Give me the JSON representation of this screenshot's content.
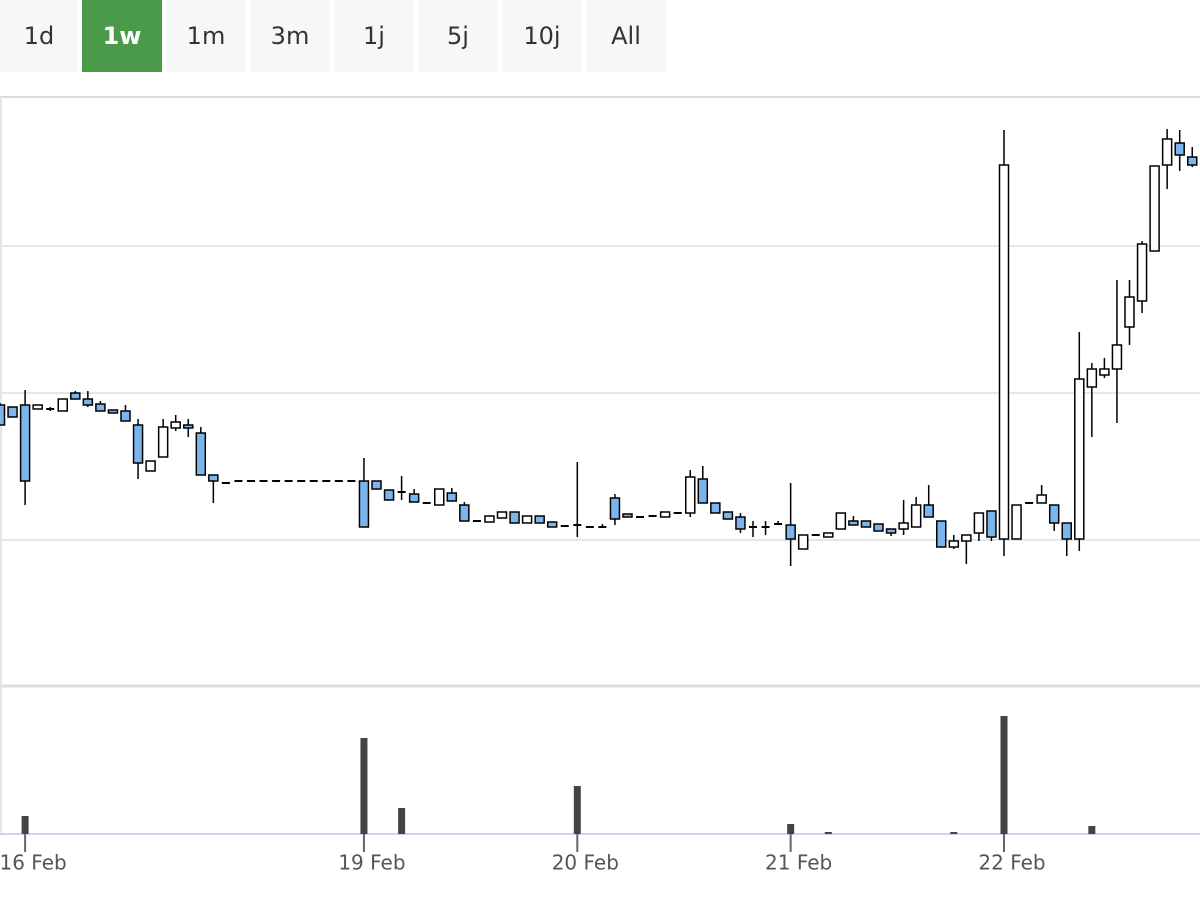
{
  "range_selector": {
    "buttons": [
      "1d",
      "1w",
      "1m",
      "3m",
      "1j",
      "5j",
      "10j",
      "All"
    ],
    "active": 1,
    "active_color": "#4a9a4a"
  },
  "chart_data": {
    "type": "candlestick",
    "categories": [
      null,
      null,
      "16 Feb",
      null,
      null,
      null,
      null,
      null,
      null,
      null,
      null,
      null,
      null,
      null,
      null,
      null,
      null,
      null,
      null,
      null,
      null,
      null,
      null,
      null,
      null,
      null,
      null,
      null,
      null,
      "19 Feb",
      null,
      null,
      null,
      null,
      null,
      null,
      null,
      null,
      null,
      null,
      null,
      null,
      null,
      null,
      null,
      null,
      "20 Feb",
      null,
      null,
      null,
      null,
      null,
      null,
      null,
      null,
      null,
      null,
      null,
      null,
      null,
      null,
      null,
      null,
      "21 Feb",
      null,
      null,
      null,
      null,
      null,
      null,
      null,
      null,
      null,
      null,
      null,
      null,
      null,
      null,
      null,
      null,
      "22 Feb",
      null,
      null,
      null,
      null,
      null,
      null,
      null,
      null,
      null,
      null,
      null,
      null,
      null,
      null,
      null
    ],
    "open": [
      280,
      278,
      280,
      276,
      276,
      274,
      292,
      286,
      281,
      275,
      274,
      260,
      214,
      228,
      257,
      260,
      252,
      210,
      202,
      204,
      204,
      204,
      204,
      204,
      204,
      204,
      204,
      204,
      204,
      204,
      204,
      195,
      193,
      191,
      182,
      180,
      192,
      180,
      164,
      163,
      167,
      173,
      162,
      169,
      163,
      159,
      160,
      158,
      158,
      187,
      171,
      168,
      169,
      168,
      172,
      172,
      206,
      182,
      173,
      168,
      158,
      158,
      161,
      160,
      136,
      150,
      148,
      156,
      164,
      164,
      161,
      156,
      156,
      158,
      180,
      164,
      138,
      144,
      152,
      174,
      146,
      146,
      182,
      182,
      180,
      162,
      146,
      298,
      310,
      316,
      358,
      384,
      434,
      520,
      542,
      528
    ],
    "high": [
      282,
      278,
      295,
      280,
      278,
      286,
      294,
      294,
      284,
      275,
      280,
      266,
      224,
      266,
      270,
      266,
      258,
      210,
      202,
      204,
      204,
      204,
      204,
      204,
      204,
      204,
      204,
      204,
      204,
      227,
      204,
      195,
      209,
      196,
      182,
      196,
      197,
      183,
      164,
      169,
      173,
      173,
      169,
      169,
      163,
      159,
      223,
      158,
      161,
      191,
      171,
      168,
      169,
      173,
      172,
      215,
      219,
      182,
      173,
      172,
      164,
      164,
      164,
      202,
      150,
      150,
      152,
      172,
      169,
      164,
      161,
      156,
      185,
      188,
      200,
      164,
      150,
      150,
      172,
      174,
      555,
      180,
      182,
      200,
      180,
      162,
      353,
      322,
      327,
      405,
      405,
      444,
      519,
      556,
      555,
      538
    ],
    "low": [
      260,
      268,
      180,
      276,
      274,
      274,
      286,
      278,
      274,
      272,
      264,
      206,
      214,
      228,
      254,
      248,
      210,
      182,
      202,
      204,
      204,
      204,
      204,
      204,
      204,
      204,
      204,
      204,
      204,
      158,
      196,
      185,
      185,
      183,
      182,
      180,
      184,
      164,
      164,
      163,
      167,
      162,
      162,
      162,
      158,
      159,
      148,
      158,
      158,
      160,
      168,
      168,
      169,
      168,
      172,
      168,
      182,
      172,
      166,
      152,
      148,
      150,
      161,
      119,
      136,
      150,
      148,
      156,
      160,
      158,
      154,
      149,
      150,
      158,
      168,
      138,
      136,
      121,
      144,
      144,
      129,
      146,
      182,
      182,
      154,
      129,
      134,
      248,
      307,
      262,
      340,
      372,
      434,
      496,
      514,
      518
    ],
    "close": [
      260,
      268,
      204,
      280,
      276,
      286,
      286,
      280,
      274,
      272,
      264,
      222,
      224,
      258,
      263,
      257,
      210,
      204,
      202,
      204,
      204,
      204,
      204,
      204,
      204,
      204,
      204,
      204,
      204,
      158,
      196,
      185,
      193,
      183,
      182,
      196,
      184,
      164,
      164,
      169,
      173,
      162,
      169,
      162,
      158,
      159,
      160,
      158,
      158,
      166,
      168,
      168,
      169,
      173,
      172,
      208,
      182,
      172,
      166,
      156,
      158,
      158,
      161,
      146,
      150,
      150,
      152,
      172,
      160,
      158,
      154,
      152,
      162,
      180,
      168,
      138,
      144,
      150,
      172,
      148,
      520,
      180,
      182,
      190,
      162,
      146,
      306,
      316,
      316,
      340,
      388,
      441,
      519,
      546,
      530,
      520
    ],
    "volume": [
      0,
      0,
      18,
      0,
      0,
      0,
      0,
      0,
      0,
      0,
      0,
      0,
      0,
      0,
      0,
      0,
      0,
      0,
      0,
      0,
      0,
      0,
      0,
      0,
      0,
      0,
      0,
      0,
      0,
      96,
      0,
      0,
      26,
      0,
      0,
      0,
      0,
      0,
      0,
      0,
      0,
      0,
      0,
      0,
      0,
      0,
      48,
      0,
      0,
      0,
      0,
      0,
      0,
      0,
      0,
      0,
      0,
      0,
      0,
      0,
      0,
      0,
      0,
      10,
      0,
      0,
      2,
      0,
      0,
      0,
      0,
      0,
      0,
      0,
      0,
      0,
      2,
      0,
      0,
      0,
      118,
      0,
      0,
      0,
      0,
      0,
      0,
      8,
      0,
      0,
      0,
      0,
      0,
      0,
      0,
      0
    ],
    "ylim": [
      0,
      588
    ],
    "ygrid": [
      145,
      292,
      439
    ],
    "volume_ylim": [
      0,
      144
    ],
    "up_color": "#ffffff",
    "down_color": "#7cb5ec",
    "volume_color": "#434348"
  }
}
